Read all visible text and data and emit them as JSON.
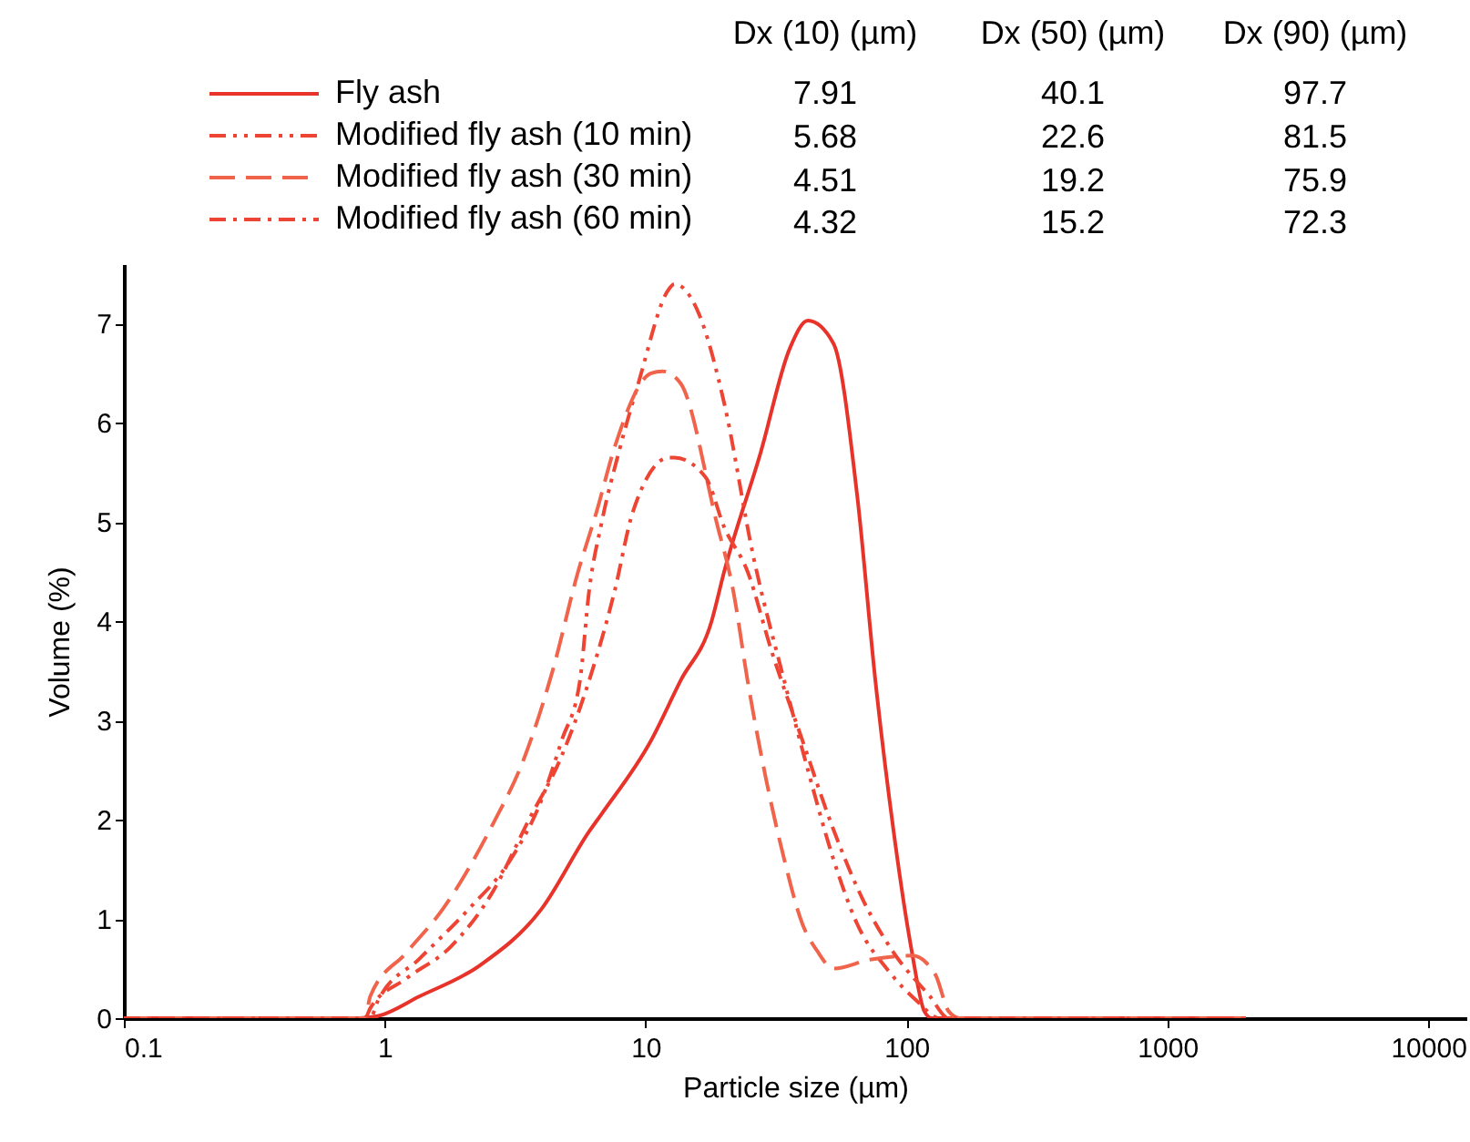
{
  "chart_data": {
    "type": "line",
    "xlabel": "Particle size (µm)",
    "ylabel": "Volume (%)",
    "log": "x",
    "xlim": [
      0.1,
      14000
    ],
    "xticks": [
      0.1,
      1,
      10,
      100,
      1000,
      10000
    ],
    "ylim": [
      0,
      7.6
    ],
    "yticks": [
      0,
      1,
      2,
      3,
      4,
      5,
      6,
      7
    ],
    "grid": false,
    "legend": "top left",
    "series": [
      {
        "name": "Fly ash",
        "color": "#e8332a",
        "line_style": "solid",
        "x": [
          0.1,
          0.8,
          0.94,
          1.36,
          2.31,
          3.99,
          6.07,
          6.79,
          10.5,
          13.6,
          17.9,
          20,
          27.6,
          35.7,
          41.9,
          52.5,
          64.7,
          76,
          89.3,
          105,
          117,
          125,
          2000
        ],
        "values": [
          0,
          0,
          0.02,
          0.22,
          0.53,
          1.1,
          1.88,
          2.06,
          2.8,
          3.4,
          4.0,
          4.5,
          5.7,
          6.75,
          7.03,
          6.8,
          5.27,
          3.4,
          1.88,
          0.66,
          0.07,
          0,
          0
        ]
      },
      {
        "name": "Modified fly ash (10 min)",
        "color": "#ee4434",
        "line_style": "dashdotdot",
        "x": [
          0.1,
          0.88,
          0.94,
          1.36,
          2.1,
          3.04,
          3.99,
          4.77,
          5.6,
          6.07,
          6.79,
          7.98,
          9.38,
          12.3,
          12.9,
          16,
          20,
          25.9,
          34,
          41.9,
          52.5,
          64.7,
          85.1,
          110,
          134,
          2000
        ],
        "values": [
          0,
          0,
          0.17,
          0.6,
          1.1,
          1.6,
          2.2,
          2.8,
          3.4,
          4.3,
          5.0,
          5.75,
          6.4,
          7.35,
          7.4,
          7.1,
          6.2,
          4.65,
          3.4,
          2.5,
          1.6,
          0.95,
          0.48,
          0.17,
          0,
          0
        ]
      },
      {
        "name": "Modified fly ash (30 min)",
        "color": "#f0644c",
        "line_style": "dashed",
        "x": [
          0.1,
          0.84,
          0.88,
          1.21,
          1.67,
          2.59,
          3.4,
          4.4,
          5.51,
          6.48,
          7.6,
          10.5,
          11.6,
          13.6,
          18.7,
          21.7,
          24.6,
          29,
          34,
          39.9,
          45.4,
          52.5,
          72.4,
          105,
          129,
          145,
          160,
          2000
        ],
        "values": [
          0,
          0,
          0.22,
          0.66,
          1.1,
          1.95,
          2.6,
          3.5,
          4.5,
          5.1,
          5.75,
          6.5,
          6.52,
          6.4,
          5.0,
          4.3,
          3.4,
          2.4,
          1.6,
          0.95,
          0.68,
          0.5,
          0.59,
          0.63,
          0.44,
          0.07,
          0,
          0
        ]
      },
      {
        "name": "Modified fly ash (60 min)",
        "color": "#ee4434",
        "line_style": "dashdot",
        "x": [
          0.1,
          0.84,
          0.88,
          1.21,
          1.79,
          2.59,
          3.57,
          4.69,
          6.07,
          7.6,
          8.93,
          12.3,
          12.9,
          17,
          20,
          24.6,
          30.4,
          39.9,
          52.5,
          67.9,
          89.3,
          123,
          145,
          2000
        ],
        "values": [
          0,
          0,
          0.1,
          0.4,
          0.72,
          1.27,
          2.0,
          2.6,
          3.4,
          4.3,
          5.1,
          5.65,
          5.65,
          5.45,
          4.95,
          4.5,
          3.7,
          2.8,
          1.9,
          1.2,
          0.66,
          0.22,
          0,
          0
        ]
      }
    ],
    "annotations": [
      "Dx (10) (µm)",
      "Dx (50) (µm)",
      "Dx (90) (µm)",
      "7.91",
      "40.1",
      "97.7",
      "5.68",
      "22.6",
      "81.5",
      "4.51",
      "19.2",
      "75.9",
      "4.32",
      "15.2",
      "72.3"
    ]
  }
}
